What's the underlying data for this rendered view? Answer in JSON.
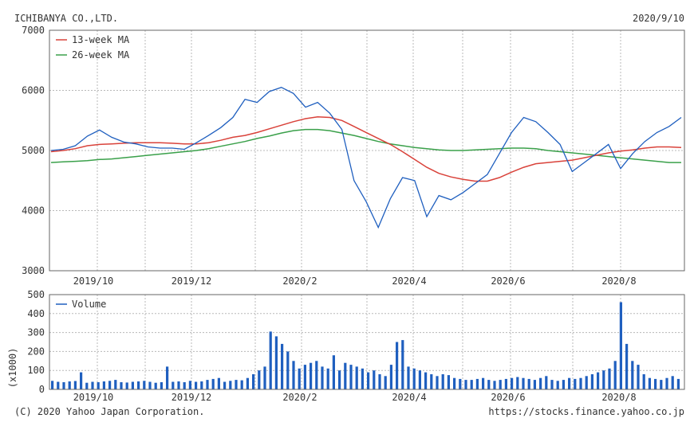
{
  "header": {
    "company": "ICHIBANYA CO.,LTD.",
    "date": "2020/9/10"
  },
  "footer": {
    "copyright": "(C) 2020 Yahoo Japan Corporation.",
    "source": "https://stocks.finance.yahoo.co.jp"
  },
  "colors": {
    "price": "#1f5fbf",
    "ma13": "#d9423a",
    "ma26": "#3aa04a",
    "volume": "#1f5fbf",
    "grid": "#b8b8b8"
  },
  "chart_data": [
    {
      "type": "line",
      "legend_position": "top-left",
      "grid": true,
      "ylim": [
        3000,
        7000
      ],
      "yticks": [
        3000,
        4000,
        5000,
        6000,
        7000
      ],
      "xtick_labels": [
        "2019/10",
        "2019/12",
        "2020/2",
        "2020/4",
        "2020/6",
        "2020/8"
      ],
      "x": [
        "2019/09/09",
        "2019/09/16",
        "2019/09/23",
        "2019/09/30",
        "2019/10/07",
        "2019/10/14",
        "2019/10/21",
        "2019/10/28",
        "2019/11/04",
        "2019/11/11",
        "2019/11/18",
        "2019/11/25",
        "2019/12/02",
        "2019/12/09",
        "2019/12/16",
        "2019/12/23",
        "2019/12/30",
        "2020/01/06",
        "2020/01/13",
        "2020/01/20",
        "2020/01/27",
        "2020/02/03",
        "2020/02/10",
        "2020/02/17",
        "2020/02/24",
        "2020/03/02",
        "2020/03/09",
        "2020/03/16",
        "2020/03/23",
        "2020/03/30",
        "2020/04/06",
        "2020/04/13",
        "2020/04/20",
        "2020/04/27",
        "2020/05/04",
        "2020/05/11",
        "2020/05/18",
        "2020/05/25",
        "2020/06/01",
        "2020/06/08",
        "2020/06/15",
        "2020/06/22",
        "2020/06/29",
        "2020/07/06",
        "2020/07/13",
        "2020/07/20",
        "2020/07/27",
        "2020/08/03",
        "2020/08/10",
        "2020/08/17",
        "2020/08/24",
        "2020/08/31",
        "2020/09/07"
      ],
      "series": [
        {
          "name": "",
          "values": [
            5000,
            5020,
            5080,
            5240,
            5340,
            5220,
            5140,
            5110,
            5060,
            5040,
            5040,
            5020,
            5130,
            5250,
            5380,
            5550,
            5850,
            5800,
            5980,
            6050,
            5950,
            5720,
            5800,
            5620,
            5350,
            4500,
            4150,
            3720,
            4200,
            4550,
            4500,
            3900,
            4250,
            4180,
            4300,
            4450,
            4600,
            4950,
            5300,
            5550,
            5480,
            5300,
            5100,
            4650,
            4800,
            4950,
            5100,
            4700,
            4950,
            5150,
            5300,
            5400,
            5550
          ]
        },
        {
          "name": "13-week MA",
          "values": [
            4980,
            5000,
            5030,
            5080,
            5100,
            5110,
            5120,
            5130,
            5130,
            5130,
            5120,
            5110,
            5110,
            5130,
            5170,
            5220,
            5250,
            5300,
            5360,
            5420,
            5480,
            5530,
            5560,
            5550,
            5500,
            5400,
            5300,
            5200,
            5100,
            4980,
            4850,
            4720,
            4620,
            4560,
            4520,
            4490,
            4490,
            4550,
            4640,
            4720,
            4780,
            4800,
            4820,
            4840,
            4880,
            4920,
            4960,
            4990,
            5010,
            5040,
            5060,
            5060,
            5050
          ]
        },
        {
          "name": "26-week MA",
          "values": [
            4800,
            4810,
            4820,
            4830,
            4850,
            4860,
            4880,
            4900,
            4920,
            4940,
            4960,
            4980,
            5000,
            5030,
            5070,
            5110,
            5150,
            5200,
            5240,
            5290,
            5330,
            5350,
            5350,
            5330,
            5290,
            5250,
            5200,
            5150,
            5110,
            5080,
            5050,
            5030,
            5010,
            5000,
            5000,
            5010,
            5020,
            5030,
            5040,
            5040,
            5030,
            5000,
            4980,
            4960,
            4940,
            4920,
            4900,
            4880,
            4860,
            4840,
            4820,
            4800,
            4800
          ]
        }
      ]
    },
    {
      "type": "bar",
      "legend_position": "top-left",
      "grid": true,
      "ylabel": "(x1000)",
      "ylim": [
        0,
        500
      ],
      "yticks": [
        0,
        100,
        200,
        300,
        400,
        500
      ],
      "xtick_labels": [
        "2019/10",
        "2019/12",
        "2020/2",
        "2020/4",
        "2020/6",
        "2020/8"
      ],
      "series": [
        {
          "name": "Volume",
          "values": [
            45,
            40,
            38,
            42,
            44,
            90,
            35,
            40,
            38,
            42,
            45,
            50,
            38,
            36,
            40,
            42,
            45,
            40,
            35,
            38,
            120,
            40,
            42,
            38,
            45,
            40,
            42,
            50,
            55,
            60,
            40,
            45,
            50,
            48,
            60,
            80,
            100,
            120,
            305,
            280,
            240,
            200,
            150,
            110,
            130,
            140,
            150,
            120,
            110,
            180,
            100,
            140,
            130,
            120,
            110,
            90,
            100,
            80,
            70,
            130,
            250,
            260,
            120,
            110,
            100,
            90,
            80,
            70,
            80,
            75,
            60,
            55,
            50,
            50,
            55,
            60,
            50,
            45,
            50,
            55,
            60,
            65,
            60,
            55,
            50,
            60,
            70,
            50,
            45,
            50,
            60,
            55,
            60,
            70,
            80,
            90,
            100,
            110,
            150,
            460,
            240,
            150,
            130,
            80,
            60,
            55,
            50,
            60,
            70,
            55
          ]
        }
      ]
    }
  ]
}
